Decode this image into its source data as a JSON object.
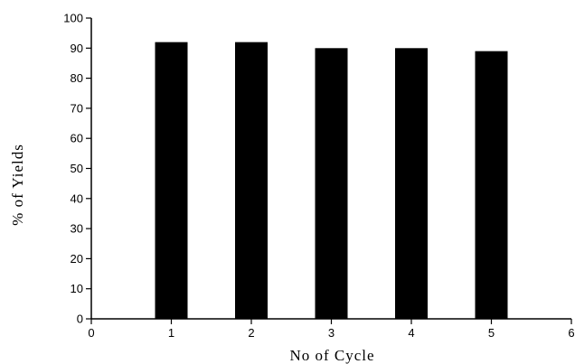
{
  "chart_data": {
    "type": "bar",
    "title": "",
    "xlabel": "No of Cycle",
    "ylabel": "% of Yields",
    "x": [
      1,
      2,
      3,
      4,
      5
    ],
    "values": [
      92,
      92,
      90,
      90,
      89
    ],
    "xlim": [
      0,
      6
    ],
    "ylim": [
      0,
      100
    ],
    "x_ticks": [
      "0",
      "1",
      "2",
      "3",
      "4",
      "5",
      "6"
    ],
    "y_ticks": [
      "0",
      "10",
      "20",
      "30",
      "40",
      "50",
      "60",
      "70",
      "80",
      "90",
      "100"
    ],
    "bar_color": "#000000",
    "grid": false,
    "legend": "none"
  }
}
